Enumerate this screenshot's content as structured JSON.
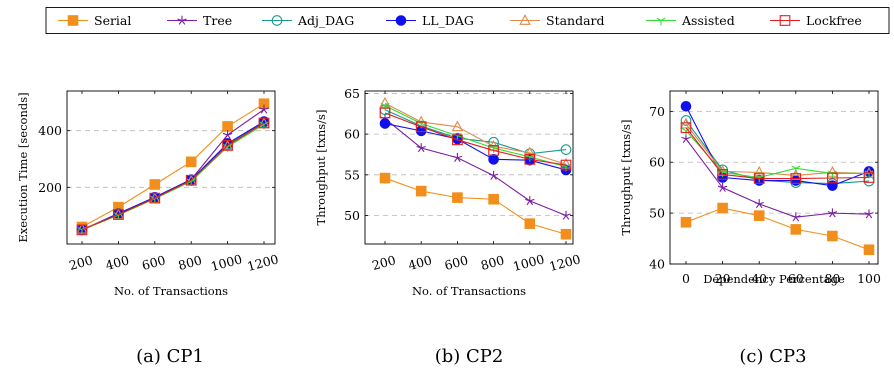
{
  "legend": {
    "entries": [
      {
        "name": "Serial",
        "color": "#f28e1c",
        "marker": "filled-square"
      },
      {
        "name": "Tree",
        "color": "#7b1fa2",
        "marker": "star"
      },
      {
        "name": "Adj_DAG",
        "color": "#1a9a8c",
        "marker": "open-circle"
      },
      {
        "name": "LL_DAG",
        "color": "#1010ee",
        "marker": "filled-circle"
      },
      {
        "name": "Standard",
        "color": "#e08a4a",
        "marker": "open-triangle"
      },
      {
        "name": "Assisted",
        "color": "#33dd33",
        "marker": "tri-star"
      },
      {
        "name": "Lockfree",
        "color": "#e02020",
        "marker": "open-square"
      }
    ]
  },
  "chart_data": [
    {
      "type": "line",
      "caption": "(a) CP1",
      "xlabel": "No. of Transactions",
      "ylabel": "Execution Time [seconds]",
      "x": [
        200,
        400,
        600,
        800,
        1000,
        1200
      ],
      "x_tick_labels": [
        "200",
        "400",
        "600",
        "800",
        "1000",
        "1200"
      ],
      "x_ticks_rotated": true,
      "ylim": [
        0,
        540
      ],
      "y_ticks": [
        200,
        400
      ],
      "grid": "horizontal dashed",
      "series": [
        {
          "name": "Serial",
          "values": [
            60,
            130,
            210,
            290,
            415,
            495
          ]
        },
        {
          "name": "Tree",
          "values": [
            50,
            108,
            165,
            228,
            385,
            475
          ]
        },
        {
          "name": "Adj_DAG",
          "values": [
            50,
            105,
            163,
            225,
            350,
            430
          ]
        },
        {
          "name": "LL_DAG",
          "values": [
            50,
            107,
            165,
            227,
            355,
            432
          ]
        },
        {
          "name": "Standard",
          "values": [
            52,
            103,
            160,
            222,
            345,
            425
          ]
        },
        {
          "name": "Assisted",
          "values": [
            50,
            102,
            160,
            221,
            343,
            422
          ]
        },
        {
          "name": "Lockfree",
          "values": [
            50,
            104,
            162,
            225,
            348,
            427
          ]
        }
      ]
    },
    {
      "type": "line",
      "caption": "(b) CP2",
      "xlabel": "No. of Transactions",
      "ylabel": "Throughput [txns/s]",
      "x": [
        200,
        400,
        600,
        800,
        1000,
        1200
      ],
      "x_tick_labels": [
        "200",
        "400",
        "600",
        "800",
        "1000",
        "1200"
      ],
      "x_ticks_rotated": true,
      "ylim": [
        46.5,
        65.3
      ],
      "y_ticks": [
        50,
        55,
        60,
        65
      ],
      "grid": "horizontal dashed",
      "series": [
        {
          "name": "Serial",
          "values": [
            54.6,
            53.0,
            52.2,
            52.0,
            49.0,
            47.7
          ]
        },
        {
          "name": "Tree",
          "values": [
            61.9,
            58.3,
            57.1,
            54.9,
            51.8,
            50.0
          ]
        },
        {
          "name": "Adj_DAG",
          "values": [
            63.0,
            61.0,
            59.5,
            59.0,
            57.6,
            58.1
          ]
        },
        {
          "name": "LL_DAG",
          "values": [
            61.3,
            60.4,
            59.4,
            56.9,
            56.8,
            55.6
          ]
        },
        {
          "name": "Standard",
          "values": [
            63.8,
            61.5,
            60.9,
            58.5,
            57.7,
            56.3
          ]
        },
        {
          "name": "Assisted",
          "values": [
            63.5,
            61.3,
            59.8,
            58.3,
            57.2,
            56.0
          ]
        },
        {
          "name": "Lockfree",
          "values": [
            62.6,
            60.9,
            59.3,
            58.0,
            56.9,
            56.2
          ]
        }
      ]
    },
    {
      "type": "line",
      "caption": "(c) CP3",
      "xlabel": "Dependency Percentage",
      "ylabel": "Throughput [txns/s]",
      "x": [
        0,
        20,
        40,
        60,
        80,
        100
      ],
      "x_tick_labels": [
        "0",
        "20",
        "40",
        "60",
        "80",
        "100"
      ],
      "x_ticks_rotated": false,
      "ylim": [
        40,
        74
      ],
      "y_ticks": [
        40,
        50,
        60,
        70
      ],
      "grid": "horizontal dashed",
      "series": [
        {
          "name": "Serial",
          "values": [
            48.2,
            51.0,
            49.5,
            46.8,
            45.5,
            42.8
          ]
        },
        {
          "name": "Tree",
          "values": [
            64.6,
            55.0,
            51.8,
            49.2,
            50.0,
            49.8
          ]
        },
        {
          "name": "Adj_DAG",
          "values": [
            68.2,
            58.5,
            56.5,
            56.0,
            55.8,
            56.3
          ]
        },
        {
          "name": "LL_DAG",
          "values": [
            71.0,
            57.0,
            56.4,
            56.4,
            55.4,
            58.2
          ]
        },
        {
          "name": "Standard",
          "values": [
            67.5,
            58.2,
            58.0,
            57.4,
            58.0,
            57.8
          ]
        },
        {
          "name": "Assisted",
          "values": [
            66.2,
            58.0,
            57.0,
            58.8,
            57.8,
            57.8
          ]
        },
        {
          "name": "Lockfree",
          "values": [
            66.8,
            57.6,
            56.8,
            56.8,
            56.9,
            57.0
          ]
        }
      ]
    }
  ]
}
